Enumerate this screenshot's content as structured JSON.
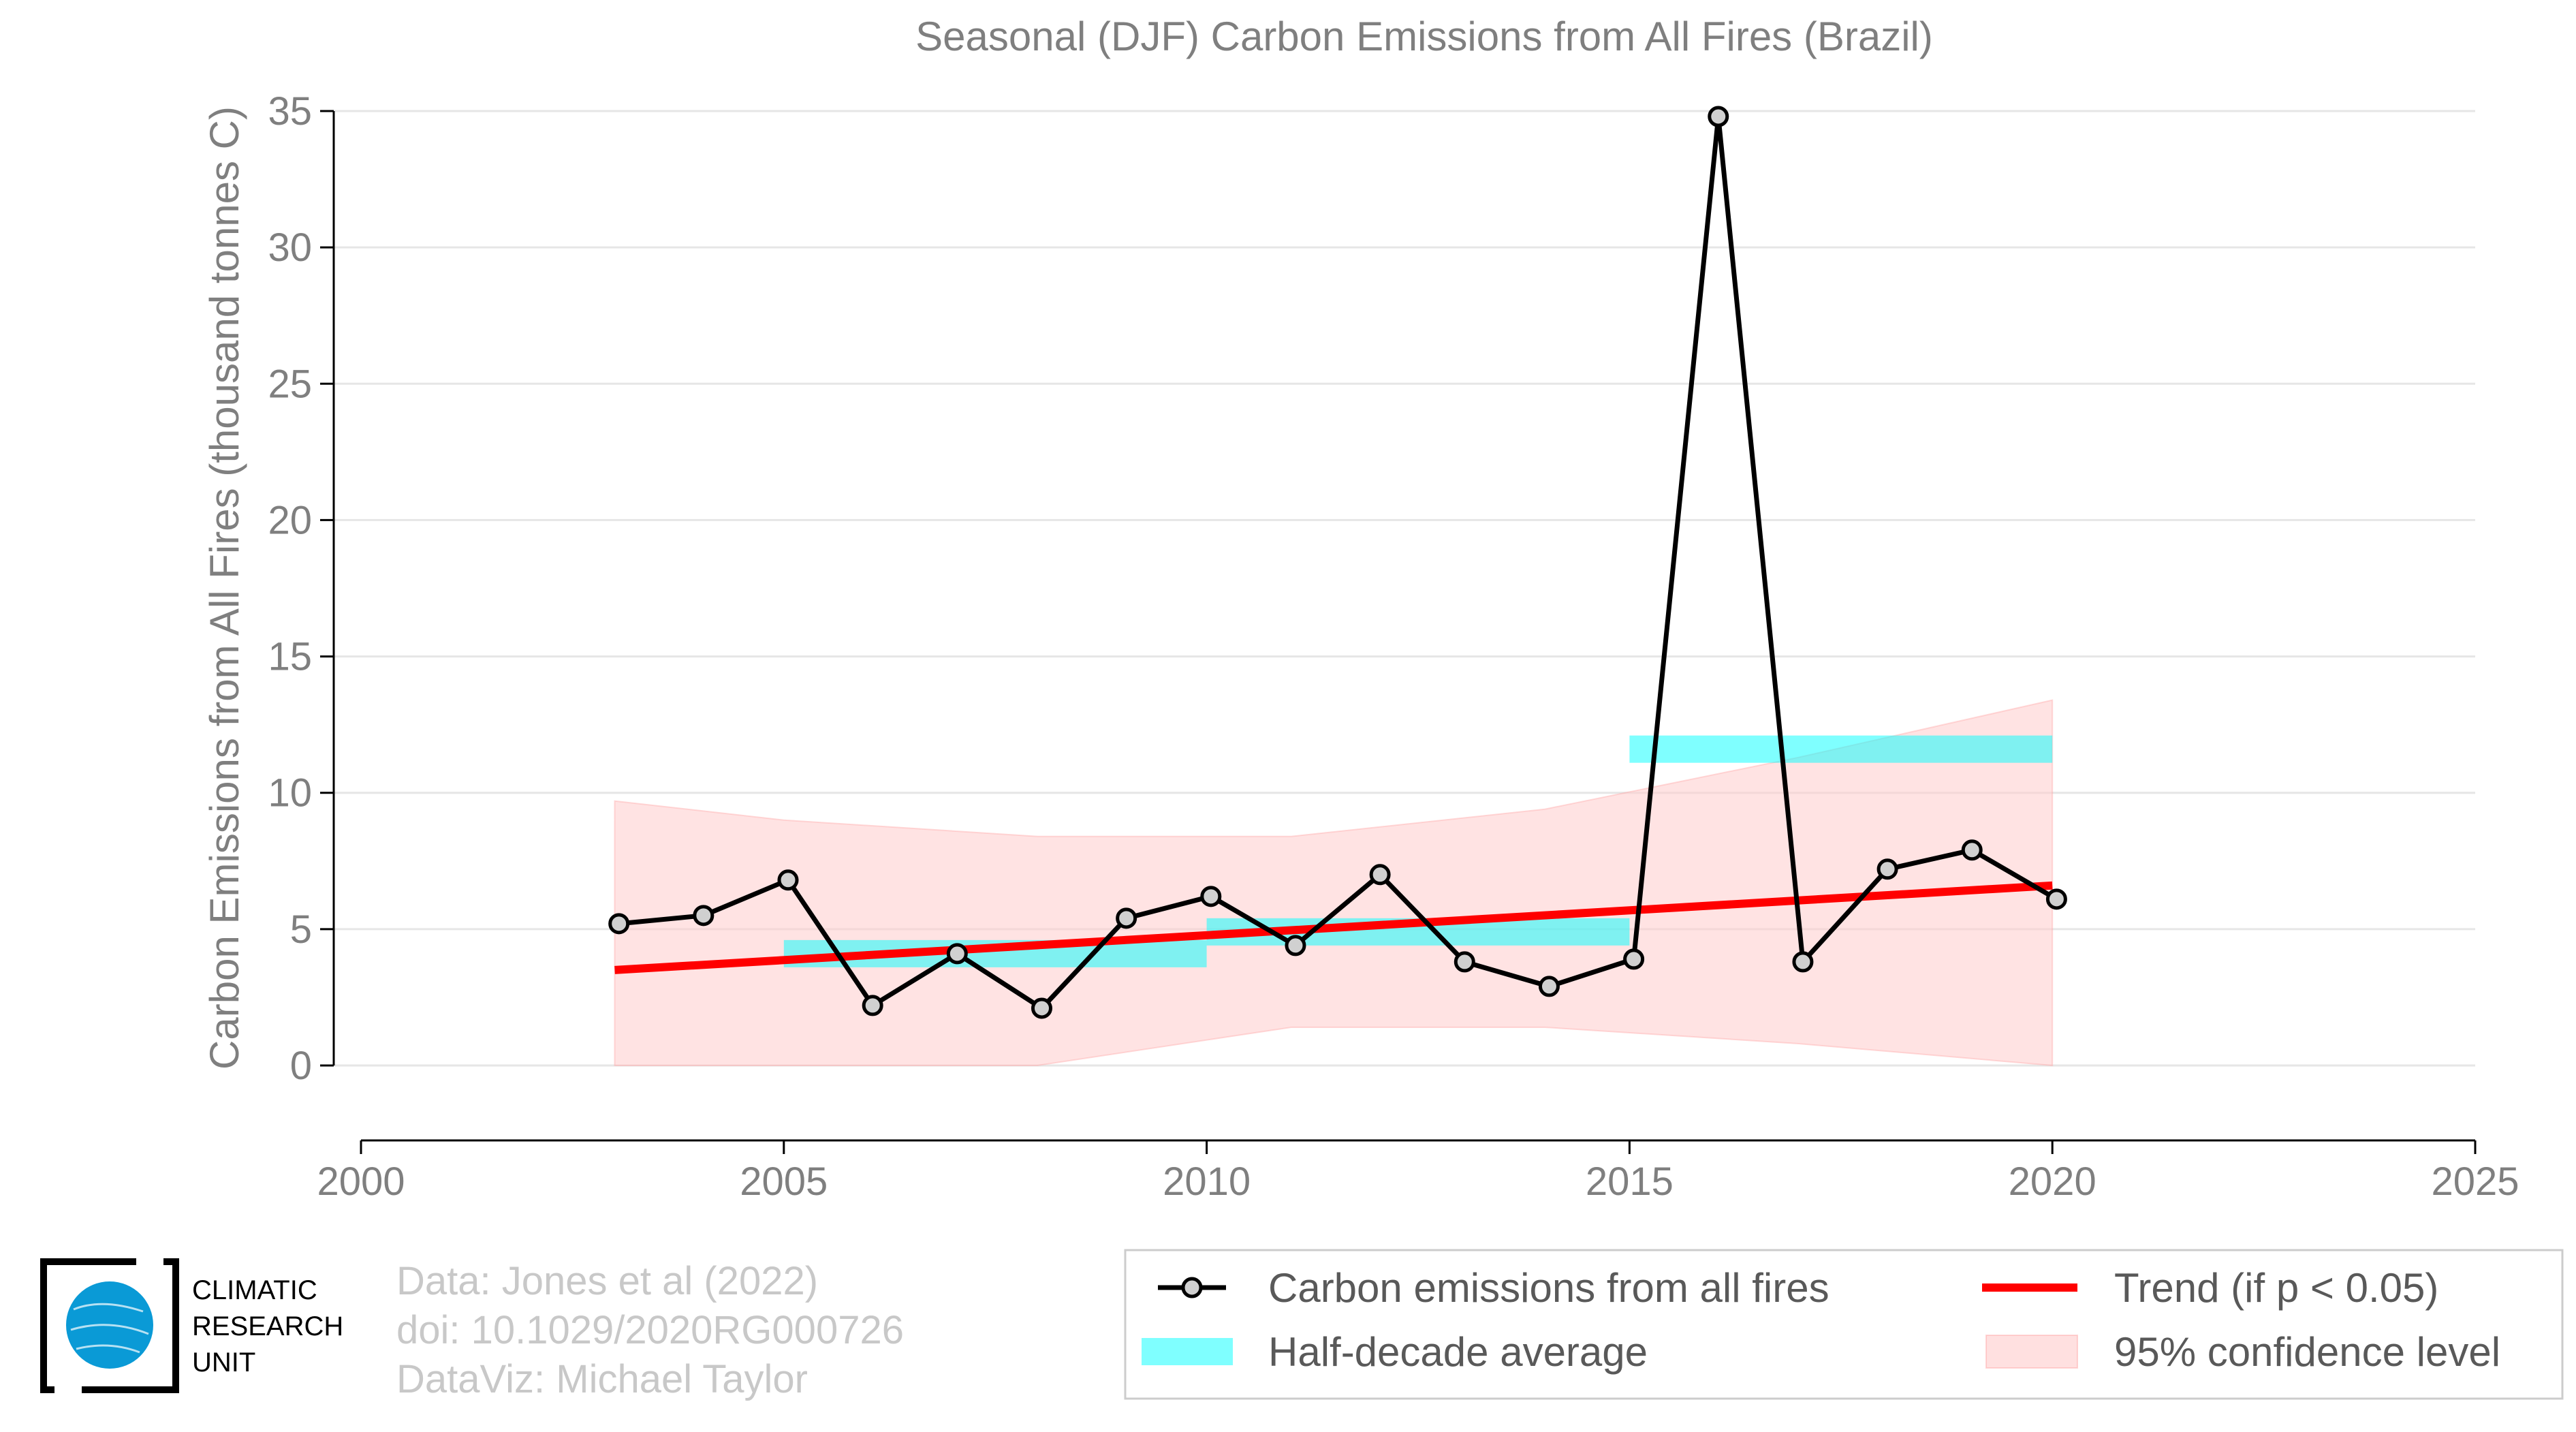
{
  "chart_data": {
    "type": "line",
    "title": "Seasonal (DJF) Carbon Emissions from All Fires (Brazil)",
    "xlabel": "",
    "ylabel": "Carbon Emissions from All Fires (thousand tonnes C)",
    "xlim": [
      2000,
      2025
    ],
    "ylim": [
      0,
      35
    ],
    "x_ticks": [
      2000,
      2005,
      2010,
      2015,
      2020,
      2025
    ],
    "y_ticks": [
      0,
      5,
      10,
      15,
      20,
      25,
      30,
      35
    ],
    "grid": "horizontal",
    "legend_position": "bottom-right",
    "series": [
      {
        "name": "Carbon emissions from all fires",
        "kind": "line-markers",
        "color": "#000000",
        "marker_color": "#d0d0d0",
        "x": [
          2003,
          2004,
          2005,
          2006,
          2007,
          2008,
          2009,
          2010,
          2011,
          2012,
          2013,
          2014,
          2015,
          2016,
          2017,
          2018,
          2019,
          2020
        ],
        "y": [
          5.2,
          5.5,
          6.8,
          2.2,
          4.1,
          2.1,
          5.4,
          6.2,
          4.4,
          7.0,
          3.8,
          2.9,
          3.9,
          34.8,
          3.8,
          7.2,
          7.9,
          6.1
        ]
      },
      {
        "name": "Half-decade average",
        "kind": "segments",
        "color": "#00ffff",
        "segments": [
          {
            "x0": 2005,
            "x1": 2010,
            "y": 4.1
          },
          {
            "x0": 2010,
            "x1": 2015,
            "y": 4.9
          },
          {
            "x0": 2015,
            "x1": 2020,
            "y": 11.6
          }
        ]
      },
      {
        "name": "Trend (if p < 0.05)",
        "kind": "line",
        "color": "#ff0000",
        "x": [
          2003,
          2020
        ],
        "y": [
          3.5,
          6.6
        ]
      },
      {
        "name": "95% confidence level",
        "kind": "band",
        "color": "#ffcccc",
        "x": [
          2003,
          2005,
          2008,
          2011,
          2014,
          2017,
          2020
        ],
        "lower": [
          0.0,
          0.0,
          0.0,
          1.4,
          1.4,
          0.8,
          0.0
        ],
        "upper": [
          9.7,
          9.0,
          8.4,
          8.4,
          9.4,
          11.3,
          13.4
        ]
      }
    ]
  },
  "credits": [
    "Data: Jones et al (2022)",
    "doi: 10.1029/2020RG000726",
    "DataViz: Michael Taylor"
  ],
  "logo": {
    "lines": [
      "CLIMATIC",
      "RESEARCH",
      "UNIT"
    ],
    "color": "#0a9ad6"
  }
}
